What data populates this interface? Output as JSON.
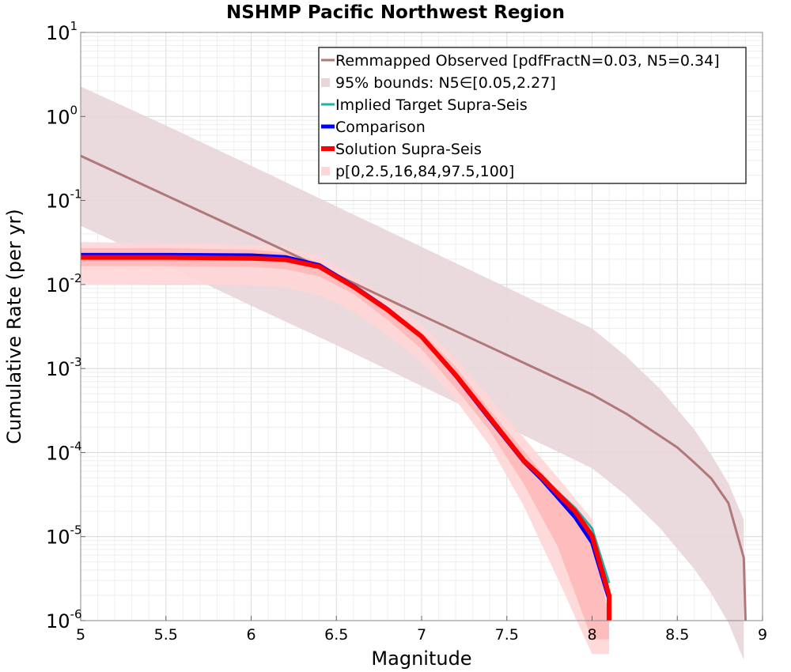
{
  "chart_data": {
    "type": "line",
    "title": "NSHMP Pacific Northwest Region",
    "xlabel": "Magnitude",
    "ylabel": "Cumulative Rate (per yr)",
    "xlim": [
      5,
      9
    ],
    "ylim_log10": [
      -6,
      1
    ],
    "y_scale": "log",
    "grid": true,
    "legend_position": "top-right",
    "x_ticks": [
      "5",
      "5.5",
      "6",
      "6.5",
      "7",
      "7.5",
      "8",
      "8.5",
      "9"
    ],
    "y_ticks": [
      {
        "base": "10",
        "exp": "1"
      },
      {
        "base": "10",
        "exp": "0"
      },
      {
        "base": "10",
        "exp": "-1"
      },
      {
        "base": "10",
        "exp": "-2"
      },
      {
        "base": "10",
        "exp": "-3"
      },
      {
        "base": "10",
        "exp": "-4"
      },
      {
        "base": "10",
        "exp": "-5"
      },
      {
        "base": "10",
        "exp": "-6"
      }
    ],
    "bands": [
      {
        "name": "95% bounds: N5∈[0.05,2.27]",
        "color": "#e8d6d9",
        "x": [
          5,
          5.5,
          6,
          6.5,
          7,
          7.5,
          8,
          8.2,
          8.4,
          8.6,
          8.7,
          8.8,
          8.89
        ],
        "upper": [
          2.27,
          0.78,
          0.26,
          0.085,
          0.028,
          0.0092,
          0.003,
          0.0014,
          0.00057,
          0.000188,
          9.4e-05,
          4.3e-05,
          1.58e-05
        ],
        "lower": [
          0.05,
          0.017,
          0.0056,
          0.0019,
          0.00062,
          0.0002,
          6.5e-05,
          3.1e-05,
          1.25e-05,
          4.1e-06,
          2.1e-06,
          9.4e-07,
          3.4e-07
        ]
      },
      {
        "name": "p[0,2.5,16,84,97.5,100]",
        "color": "#ffd6d6",
        "x": [
          5,
          5.5,
          6,
          6.2,
          6.4,
          6.6,
          6.8,
          7,
          7.2,
          7.4,
          7.6,
          7.8,
          8,
          8.1
        ],
        "upper": [
          0.032,
          0.031,
          0.03,
          0.028,
          0.022,
          0.0125,
          0.0068,
          0.0033,
          0.0013,
          0.00045,
          0.00015,
          5e-05,
          1.6e-05,
          1.1e-06
        ],
        "lower": [
          0.0102,
          0.0101,
          0.0098,
          0.0092,
          0.0075,
          0.0048,
          0.0025,
          0.0012,
          0.00042,
          0.00012,
          2.3e-05,
          3.1e-06,
          4e-07,
          4e-07
        ]
      },
      {
        "name": "p[0,2.5,16,84,97.5,100] inner",
        "color": "#ffb8b8",
        "x": [
          5,
          5.5,
          6,
          6.2,
          6.4,
          6.6,
          6.8,
          7,
          7.2,
          7.4,
          7.6,
          7.8,
          8,
          8.1
        ],
        "upper": [
          0.027,
          0.027,
          0.026,
          0.024,
          0.0185,
          0.0105,
          0.0055,
          0.0027,
          0.00105,
          0.00032,
          0.000105,
          3.4e-05,
          1.15e-05,
          1.1e-06
        ],
        "lower": [
          0.0165,
          0.0165,
          0.0162,
          0.0152,
          0.0125,
          0.0077,
          0.0038,
          0.0017,
          0.00058,
          0.00018,
          4.2e-05,
          7.5e-06,
          6e-07,
          6e-07
        ]
      }
    ],
    "series": [
      {
        "name": "Remmapped Observed [pdfFractN=0.03, N5=0.34]",
        "color": "#b07878",
        "width": 3,
        "x": [
          5,
          5.5,
          6,
          6.5,
          7,
          7.5,
          8,
          8.2,
          8.4,
          8.5,
          8.6,
          8.7,
          8.8,
          8.89,
          8.9
        ],
        "y": [
          0.34,
          0.115,
          0.039,
          0.013,
          0.0043,
          0.00145,
          0.00049,
          0.00029,
          0.000157,
          0.000115,
          7.6e-05,
          4.9e-05,
          2.5e-05,
          5.6e-06,
          1e-06
        ]
      },
      {
        "name": "Implied Target Supra-Seis",
        "color": "#20b2aa",
        "width": 3,
        "x": [
          5,
          5.5,
          6,
          6.2,
          6.4,
          6.6,
          6.8,
          7,
          7.2,
          7.4,
          7.6,
          7.7,
          7.8,
          7.9,
          8,
          8.1
        ],
        "y": [
          0.0225,
          0.0225,
          0.0222,
          0.0212,
          0.0172,
          0.0098,
          0.0052,
          0.0024,
          0.00085,
          0.00026,
          8.4e-05,
          5.4e-05,
          3.4e-05,
          2.2e-05,
          1.25e-05,
          2.8e-06
        ]
      },
      {
        "name": "Comparison",
        "color": "#0000ff",
        "width": 5,
        "x": [
          5,
          5.5,
          6,
          6.2,
          6.4,
          6.6,
          6.8,
          7,
          7.2,
          7.4,
          7.6,
          7.7,
          7.8,
          7.9,
          8,
          8.1
        ],
        "y": [
          0.0225,
          0.0225,
          0.0222,
          0.0212,
          0.017,
          0.0096,
          0.0051,
          0.0024,
          0.00082,
          0.00025,
          7.8e-05,
          4.9e-05,
          2.9e-05,
          1.7e-05,
          8.5e-06,
          1.8e-06
        ]
      },
      {
        "name": "Solution Supra-Seis",
        "color": "#ff0000",
        "width": 6,
        "x": [
          5,
          5.5,
          6,
          6.2,
          6.4,
          6.6,
          6.8,
          7,
          7.2,
          7.4,
          7.6,
          7.7,
          7.8,
          7.9,
          8,
          8.1,
          8.1
        ],
        "y": [
          0.021,
          0.021,
          0.0205,
          0.0198,
          0.0163,
          0.0094,
          0.005,
          0.0024,
          0.00084,
          0.00026,
          8e-05,
          5.2e-05,
          3.2e-05,
          2e-05,
          1.02e-05,
          2e-06,
          1e-06
        ]
      }
    ],
    "legend": [
      {
        "label": "Remmapped Observed [pdfFractN=0.03, N5=0.34]",
        "kind": "line",
        "color": "#b07878",
        "width": 3
      },
      {
        "label": "95% bounds: N5∈[0.05,2.27]",
        "kind": "box",
        "color": "#e8d6d9"
      },
      {
        "label": "Implied Target Supra-Seis",
        "kind": "line",
        "color": "#20b2aa",
        "width": 3
      },
      {
        "label": "Comparison",
        "kind": "line",
        "color": "#0000ff",
        "width": 5
      },
      {
        "label": "Solution Supra-Seis",
        "kind": "line",
        "color": "#ff0000",
        "width": 6
      },
      {
        "label": "p[0,2.5,16,84,97.5,100]",
        "kind": "box",
        "color": "#ffd6d6"
      }
    ]
  }
}
